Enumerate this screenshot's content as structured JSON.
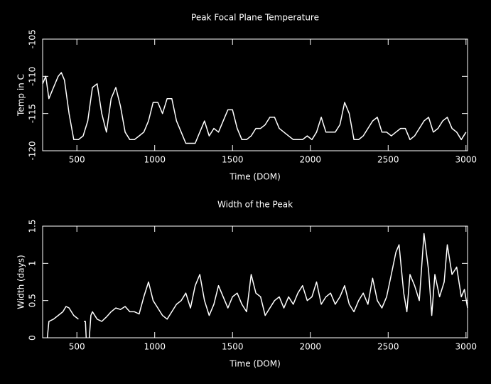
{
  "chart_data": [
    {
      "type": "line",
      "title": "Peak Focal Plane Temperature",
      "x_label": "Time (DOM)",
      "y_label": "Temp in C",
      "xlim": [
        280,
        3010
      ],
      "xticks": [
        500,
        1000,
        1500,
        2000,
        2500,
        3000
      ],
      "ylim": [
        -120,
        -105
      ],
      "yticks": [
        -120,
        -115,
        -110,
        -105
      ],
      "color": "#ffffff",
      "x": [
        280,
        300,
        320,
        350,
        380,
        400,
        420,
        450,
        480,
        510,
        540,
        570,
        600,
        630,
        660,
        690,
        720,
        750,
        780,
        810,
        840,
        870,
        900,
        930,
        960,
        990,
        1020,
        1050,
        1080,
        1110,
        1140,
        1170,
        1200,
        1230,
        1260,
        1290,
        1320,
        1350,
        1380,
        1410,
        1440,
        1470,
        1500,
        1530,
        1560,
        1590,
        1620,
        1650,
        1680,
        1710,
        1740,
        1770,
        1800,
        1830,
        1860,
        1890,
        1920,
        1950,
        1980,
        2010,
        2040,
        2070,
        2100,
        2130,
        2160,
        2190,
        2220,
        2250,
        2280,
        2310,
        2340,
        2370,
        2400,
        2430,
        2460,
        2490,
        2520,
        2550,
        2580,
        2610,
        2640,
        2670,
        2700,
        2730,
        2760,
        2790,
        2820,
        2850,
        2880,
        2910,
        2940,
        2970,
        3000
      ],
      "values": [
        -111,
        -110,
        -113,
        -111.5,
        -110,
        -109.5,
        -110.5,
        -115,
        -118.5,
        -118.5,
        -118,
        -116,
        -111.5,
        -111,
        -115,
        -117.5,
        -113,
        -111.5,
        -114,
        -117.5,
        -118.5,
        -118.5,
        -118,
        -117.5,
        -116,
        -113.5,
        -113.5,
        -115,
        -113,
        -113,
        -116,
        -117.5,
        -119,
        -119,
        -119,
        -117.5,
        -116,
        -118,
        -117,
        -117.5,
        -116,
        -114.5,
        -114.5,
        -117,
        -118.5,
        -118.5,
        -118,
        -117,
        -117,
        -116.5,
        -115.5,
        -115.5,
        -117,
        -117.5,
        -118,
        -118.5,
        -118.5,
        -118.5,
        -118,
        -118.5,
        -117.5,
        -115.5,
        -117.5,
        -117.5,
        -117.5,
        -116.5,
        -113.5,
        -115,
        -118.5,
        -118.5,
        -118,
        -117,
        -116,
        -115.5,
        -117.5,
        -117.5,
        -118,
        -117.5,
        -117,
        -117,
        -118.5,
        -118,
        -117,
        -116,
        -115.5,
        -117.5,
        -117,
        -116,
        -115.5,
        -117,
        -117.5,
        -118.5,
        -117.5
      ]
    },
    {
      "type": "line",
      "title": "Width of the Peak",
      "x_label": "Time (DOM)",
      "y_label": "Width (days)",
      "xlim": [
        280,
        3010
      ],
      "xticks": [
        500,
        1000,
        1500,
        2000,
        2500,
        3000
      ],
      "ylim": [
        0,
        1.5
      ],
      "yticks": [
        0,
        0.5,
        1,
        1.5
      ],
      "color": "#ffffff",
      "x": [
        310,
        320,
        350,
        380,
        410,
        430,
        450,
        480,
        510,
        530,
        545,
        555,
        560,
        570,
        580,
        590,
        600,
        630,
        660,
        690,
        720,
        750,
        780,
        810,
        840,
        870,
        900,
        930,
        960,
        990,
        1020,
        1050,
        1080,
        1110,
        1140,
        1170,
        1200,
        1230,
        1260,
        1290,
        1320,
        1350,
        1380,
        1410,
        1440,
        1470,
        1500,
        1530,
        1560,
        1590,
        1620,
        1650,
        1680,
        1710,
        1740,
        1770,
        1800,
        1830,
        1860,
        1890,
        1920,
        1950,
        1980,
        2010,
        2040,
        2070,
        2100,
        2130,
        2160,
        2190,
        2220,
        2250,
        2280,
        2310,
        2340,
        2370,
        2400,
        2430,
        2460,
        2490,
        2520,
        2550,
        2570,
        2600,
        2620,
        2640,
        2670,
        2700,
        2730,
        2760,
        2780,
        2800,
        2830,
        2860,
        2880,
        2910,
        2940,
        2970,
        2990,
        3010
      ],
      "values": [
        0,
        0.22,
        0.25,
        0.3,
        0.35,
        0.42,
        0.4,
        0.3,
        0.25,
        null,
        0.22,
        0.22,
        0,
        null,
        0,
        0.3,
        0.35,
        0.25,
        0.22,
        0.28,
        0.35,
        0.4,
        0.38,
        0.42,
        0.35,
        0.35,
        0.32,
        0.55,
        0.75,
        0.5,
        0.4,
        0.3,
        0.25,
        0.35,
        0.45,
        0.5,
        0.6,
        0.4,
        0.7,
        0.85,
        0.5,
        0.3,
        0.45,
        0.7,
        0.55,
        0.4,
        0.55,
        0.6,
        0.45,
        0.35,
        0.85,
        0.6,
        0.55,
        0.3,
        0.4,
        0.5,
        0.55,
        0.4,
        0.55,
        0.45,
        0.6,
        0.7,
        0.5,
        0.55,
        0.75,
        0.45,
        0.55,
        0.6,
        0.45,
        0.55,
        0.7,
        0.45,
        0.35,
        0.5,
        0.6,
        0.45,
        0.8,
        0.5,
        0.4,
        0.55,
        0.85,
        1.15,
        1.25,
        0.6,
        0.35,
        0.85,
        0.7,
        0.5,
        1.4,
        0.9,
        0.3,
        0.85,
        0.55,
        0.75,
        1.25,
        0.85,
        0.95,
        0.55,
        0.65,
        0.4
      ]
    }
  ]
}
